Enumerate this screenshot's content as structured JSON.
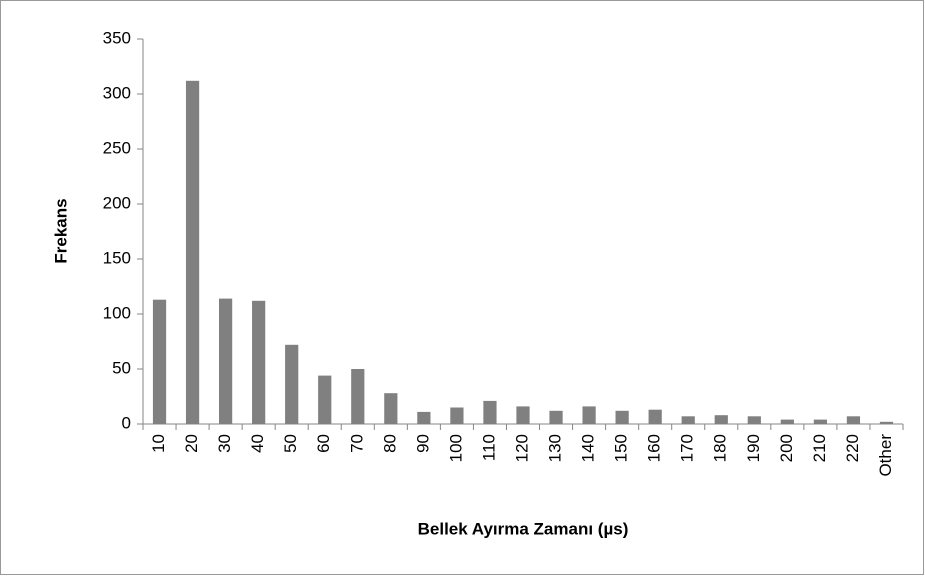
{
  "chart_data": {
    "type": "bar",
    "x_label": "Bellek Ayırma Zamanı (µs)",
    "y_label": "Frekans",
    "categories": [
      "10",
      "20",
      "30",
      "40",
      "50",
      "60",
      "70",
      "80",
      "90",
      "100",
      "110",
      "120",
      "130",
      "140",
      "150",
      "160",
      "170",
      "180",
      "190",
      "200",
      "210",
      "220",
      "Other"
    ],
    "values": [
      113,
      312,
      114,
      112,
      72,
      44,
      50,
      28,
      11,
      15,
      21,
      16,
      12,
      16,
      12,
      13,
      7,
      8,
      7,
      4,
      4,
      7,
      2
    ],
    "color": "#808080",
    "ylim": [
      0,
      350
    ],
    "yticks": [
      0,
      50,
      100,
      150,
      200,
      250,
      300,
      350
    ],
    "grid": false
  }
}
